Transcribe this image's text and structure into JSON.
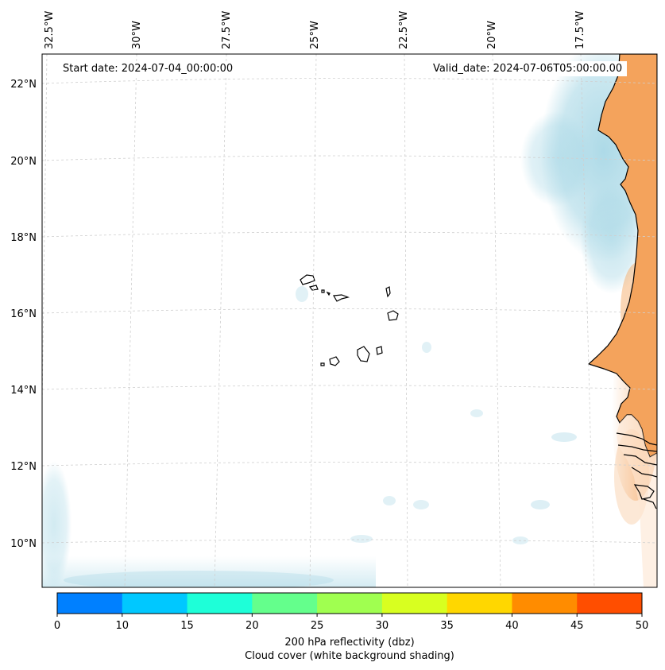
{
  "annotations": {
    "start_date": "Start date: 2024-07-04_00:00:00",
    "valid_date": "Valid_date: 2024-07-06T05:00:00.00"
  },
  "lon_labels": [
    "32.5°W",
    "30°W",
    "27.5°W",
    "25°W",
    "22.5°W",
    "20°W",
    "17.5°W"
  ],
  "lat_labels": [
    "22°N",
    "20°N",
    "18°N",
    "16°N",
    "14°N",
    "12°N",
    "10°N"
  ],
  "colorbar": {
    "label_line1": "200 hPa reflectivity (dbz)",
    "label_line2": "Cloud cover (white background shading)",
    "ticks": [
      "0",
      "10",
      "15",
      "20",
      "25",
      "30",
      "35",
      "40",
      "45",
      "50"
    ],
    "colors": [
      "#0080ff",
      "#00c8ff",
      "#1effd8",
      "#64ff8c",
      "#a0ff50",
      "#d8ff20",
      "#ffd700",
      "#ff8c00",
      "#ff4e00"
    ]
  },
  "colors": {
    "land": "#f4a35c",
    "cloud_blue": "#a9d8e6",
    "coastline": "#000000",
    "grid": "#cfcfcf"
  }
}
